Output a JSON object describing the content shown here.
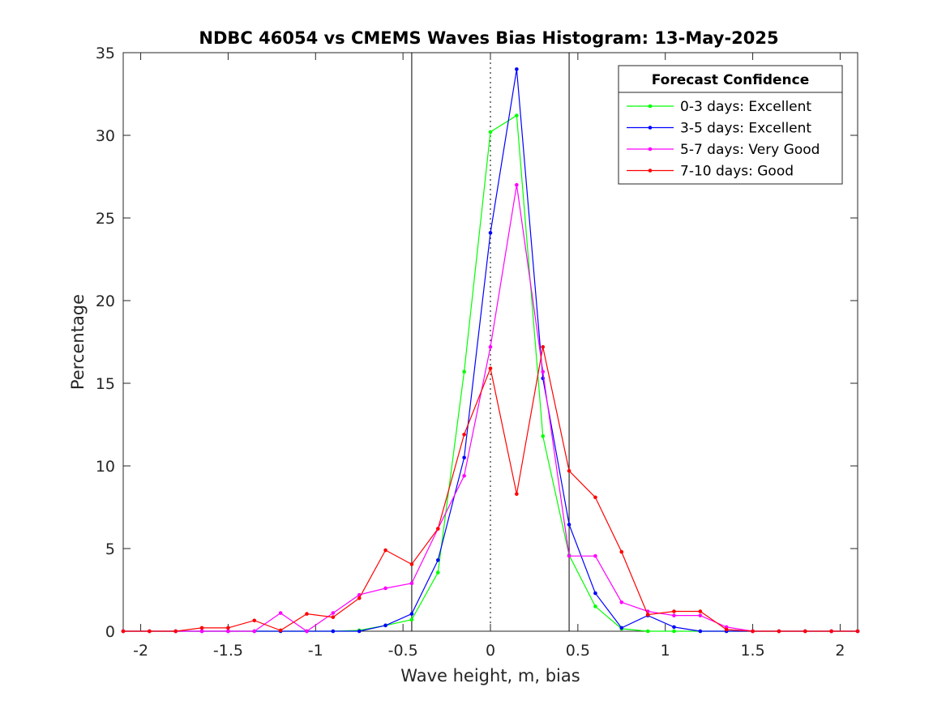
{
  "chart_data": {
    "type": "line",
    "title": "NDBC 46054 vs CMEMS Waves Bias Histogram: 13-May-2025",
    "xlabel": "Wave height, m, bias",
    "ylabel": "Percentage",
    "xlim": [
      -2.1,
      2.1
    ],
    "ylim": [
      0,
      35
    ],
    "xticks": [
      -2,
      -1.5,
      -1,
      -0.5,
      0,
      0.5,
      1,
      1.5,
      2
    ],
    "xtick_labels": [
      "-2",
      "-1.5",
      "-1",
      "-0.5",
      "0",
      "0.5",
      "1",
      "1.5",
      "2"
    ],
    "yticks": [
      0,
      5,
      10,
      15,
      20,
      25,
      30,
      35
    ],
    "ytick_labels": [
      "0",
      "5",
      "10",
      "15",
      "20",
      "25",
      "30",
      "35"
    ],
    "grid": false,
    "legend_placement": "top-right",
    "legend_title": "Forecast Confidence",
    "reference_lines": [
      {
        "x": -0.45,
        "style": "solid",
        "color": "#000000"
      },
      {
        "x": 0,
        "style": "dotted",
        "color": "#000000"
      },
      {
        "x": 0.45,
        "style": "solid",
        "color": "#000000"
      }
    ],
    "x": [
      -2.1,
      -1.95,
      -1.8,
      -1.65,
      -1.5,
      -1.35,
      -1.2,
      -1.05,
      -0.9,
      -0.75,
      -0.6,
      -0.45,
      -0.3,
      -0.15,
      0,
      0.15,
      0.3,
      0.45,
      0.6,
      0.75,
      0.9,
      1.05,
      1.2,
      1.35,
      1.5,
      1.65,
      1.8,
      1.95,
      2.1
    ],
    "series": [
      {
        "name": "0-3 days: Excellent",
        "color": "#00ff00",
        "values": [
          0,
          0,
          0,
          0,
          0,
          0,
          0,
          0,
          0,
          0.05,
          0.35,
          0.7,
          3.55,
          15.7,
          30.2,
          31.2,
          11.8,
          4.6,
          1.5,
          0.15,
          0,
          0,
          0,
          0,
          0,
          0,
          0,
          0,
          0
        ]
      },
      {
        "name": "3-5 days: Excellent",
        "color": "#0000ff",
        "values": [
          0,
          0,
          0,
          0,
          0,
          0,
          0,
          0,
          0,
          0,
          0.35,
          1.05,
          4.3,
          10.5,
          24.1,
          34.0,
          15.3,
          6.45,
          2.3,
          0.2,
          0.95,
          0.25,
          0,
          0,
          0,
          0,
          0,
          0,
          0
        ]
      },
      {
        "name": "5-7 days: Very Good",
        "color": "#ff00ff",
        "values": [
          0,
          0,
          0,
          0,
          0,
          0,
          1.1,
          0,
          1.1,
          2.2,
          2.6,
          2.9,
          6.2,
          9.4,
          17.2,
          27.0,
          15.7,
          4.55,
          4.55,
          1.75,
          1.2,
          0.95,
          0.95,
          0.25,
          0,
          0,
          0,
          0,
          0
        ]
      },
      {
        "name": "7-10 days: Good",
        "color": "#ff0000",
        "values": [
          0,
          0,
          0,
          0.2,
          0.2,
          0.65,
          0.05,
          1.05,
          0.85,
          2.0,
          4.9,
          4.05,
          6.2,
          11.9,
          15.9,
          8.3,
          17.2,
          9.7,
          8.1,
          4.8,
          1.0,
          1.2,
          1.2,
          0.1,
          0,
          0,
          0,
          0,
          0
        ]
      }
    ]
  }
}
